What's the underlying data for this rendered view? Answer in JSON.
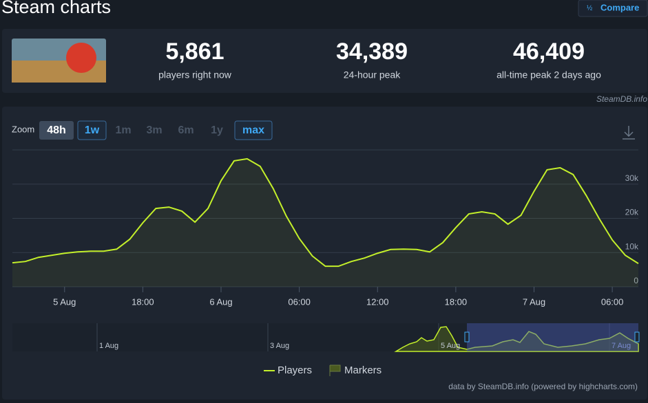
{
  "header": {
    "title": "Steam charts",
    "compare": "Compare"
  },
  "stats": [
    {
      "value": "5,861",
      "label": "players right now"
    },
    {
      "value": "34,389",
      "label": "24-hour peak"
    },
    {
      "value": "46,409",
      "label": "all-time peak 2 days ago"
    }
  ],
  "credit_top": "SteamDB.info",
  "zoom": {
    "label": "Zoom",
    "buttons": [
      "48h",
      "1w",
      "1m",
      "3m",
      "6m",
      "1y",
      "max"
    ]
  },
  "chart_data": {
    "type": "line",
    "x": [
      -16,
      -15,
      -14,
      -13,
      -12,
      -11,
      -10,
      -9,
      -8,
      -7,
      -6,
      -5,
      -4,
      -3,
      -2,
      -1,
      0,
      1,
      2,
      3,
      4,
      5,
      6,
      7,
      8,
      9,
      10,
      11,
      12,
      13,
      14,
      15,
      16,
      17,
      18,
      19,
      20,
      21,
      22,
      23,
      24,
      25,
      26,
      27,
      28,
      29,
      30,
      31,
      32
    ],
    "series": [
      {
        "name": "Players",
        "color": "#c4f02a",
        "values": [
          7000,
          7400,
          8600,
          9200,
          9800,
          10200,
          10400,
          10400,
          11000,
          13900,
          18700,
          22900,
          23300,
          22100,
          18900,
          22900,
          31000,
          36800,
          37400,
          35200,
          28700,
          20700,
          14100,
          9000,
          6000,
          6000,
          7400,
          8400,
          9800,
          10900,
          11000,
          10900,
          10200,
          12900,
          17300,
          21300,
          21900,
          21300,
          18300,
          20900,
          27900,
          34200,
          34800,
          32800,
          26700,
          19900,
          13700,
          9200,
          6800
        ]
      }
    ],
    "xlim": [
      -16,
      32
    ],
    "xticks": [
      {
        "value": -12,
        "label": "5 Aug"
      },
      {
        "value": -6,
        "label": "18:00"
      },
      {
        "value": 0,
        "label": "6 Aug"
      },
      {
        "value": 6,
        "label": "06:00"
      },
      {
        "value": 12,
        "label": "12:00"
      },
      {
        "value": 18,
        "label": "18:00"
      },
      {
        "value": 24,
        "label": "7 Aug"
      },
      {
        "value": 30,
        "label": "06:00"
      }
    ],
    "ylim": [
      0,
      40000
    ],
    "yticks": [
      {
        "value": 0,
        "label": "0"
      },
      {
        "value": 10000,
        "label": "10k"
      },
      {
        "value": 20000,
        "label": "20k"
      },
      {
        "value": 30000,
        "label": "30k"
      }
    ],
    "grid": true,
    "legend": [
      "Players",
      "Markers"
    ]
  },
  "navigator": {
    "labels": [
      "1 Aug",
      "3 Aug",
      "5 Aug",
      "7 Aug"
    ]
  },
  "credit_bottom": "data by SteamDB.info (powered by highcharts.com)"
}
